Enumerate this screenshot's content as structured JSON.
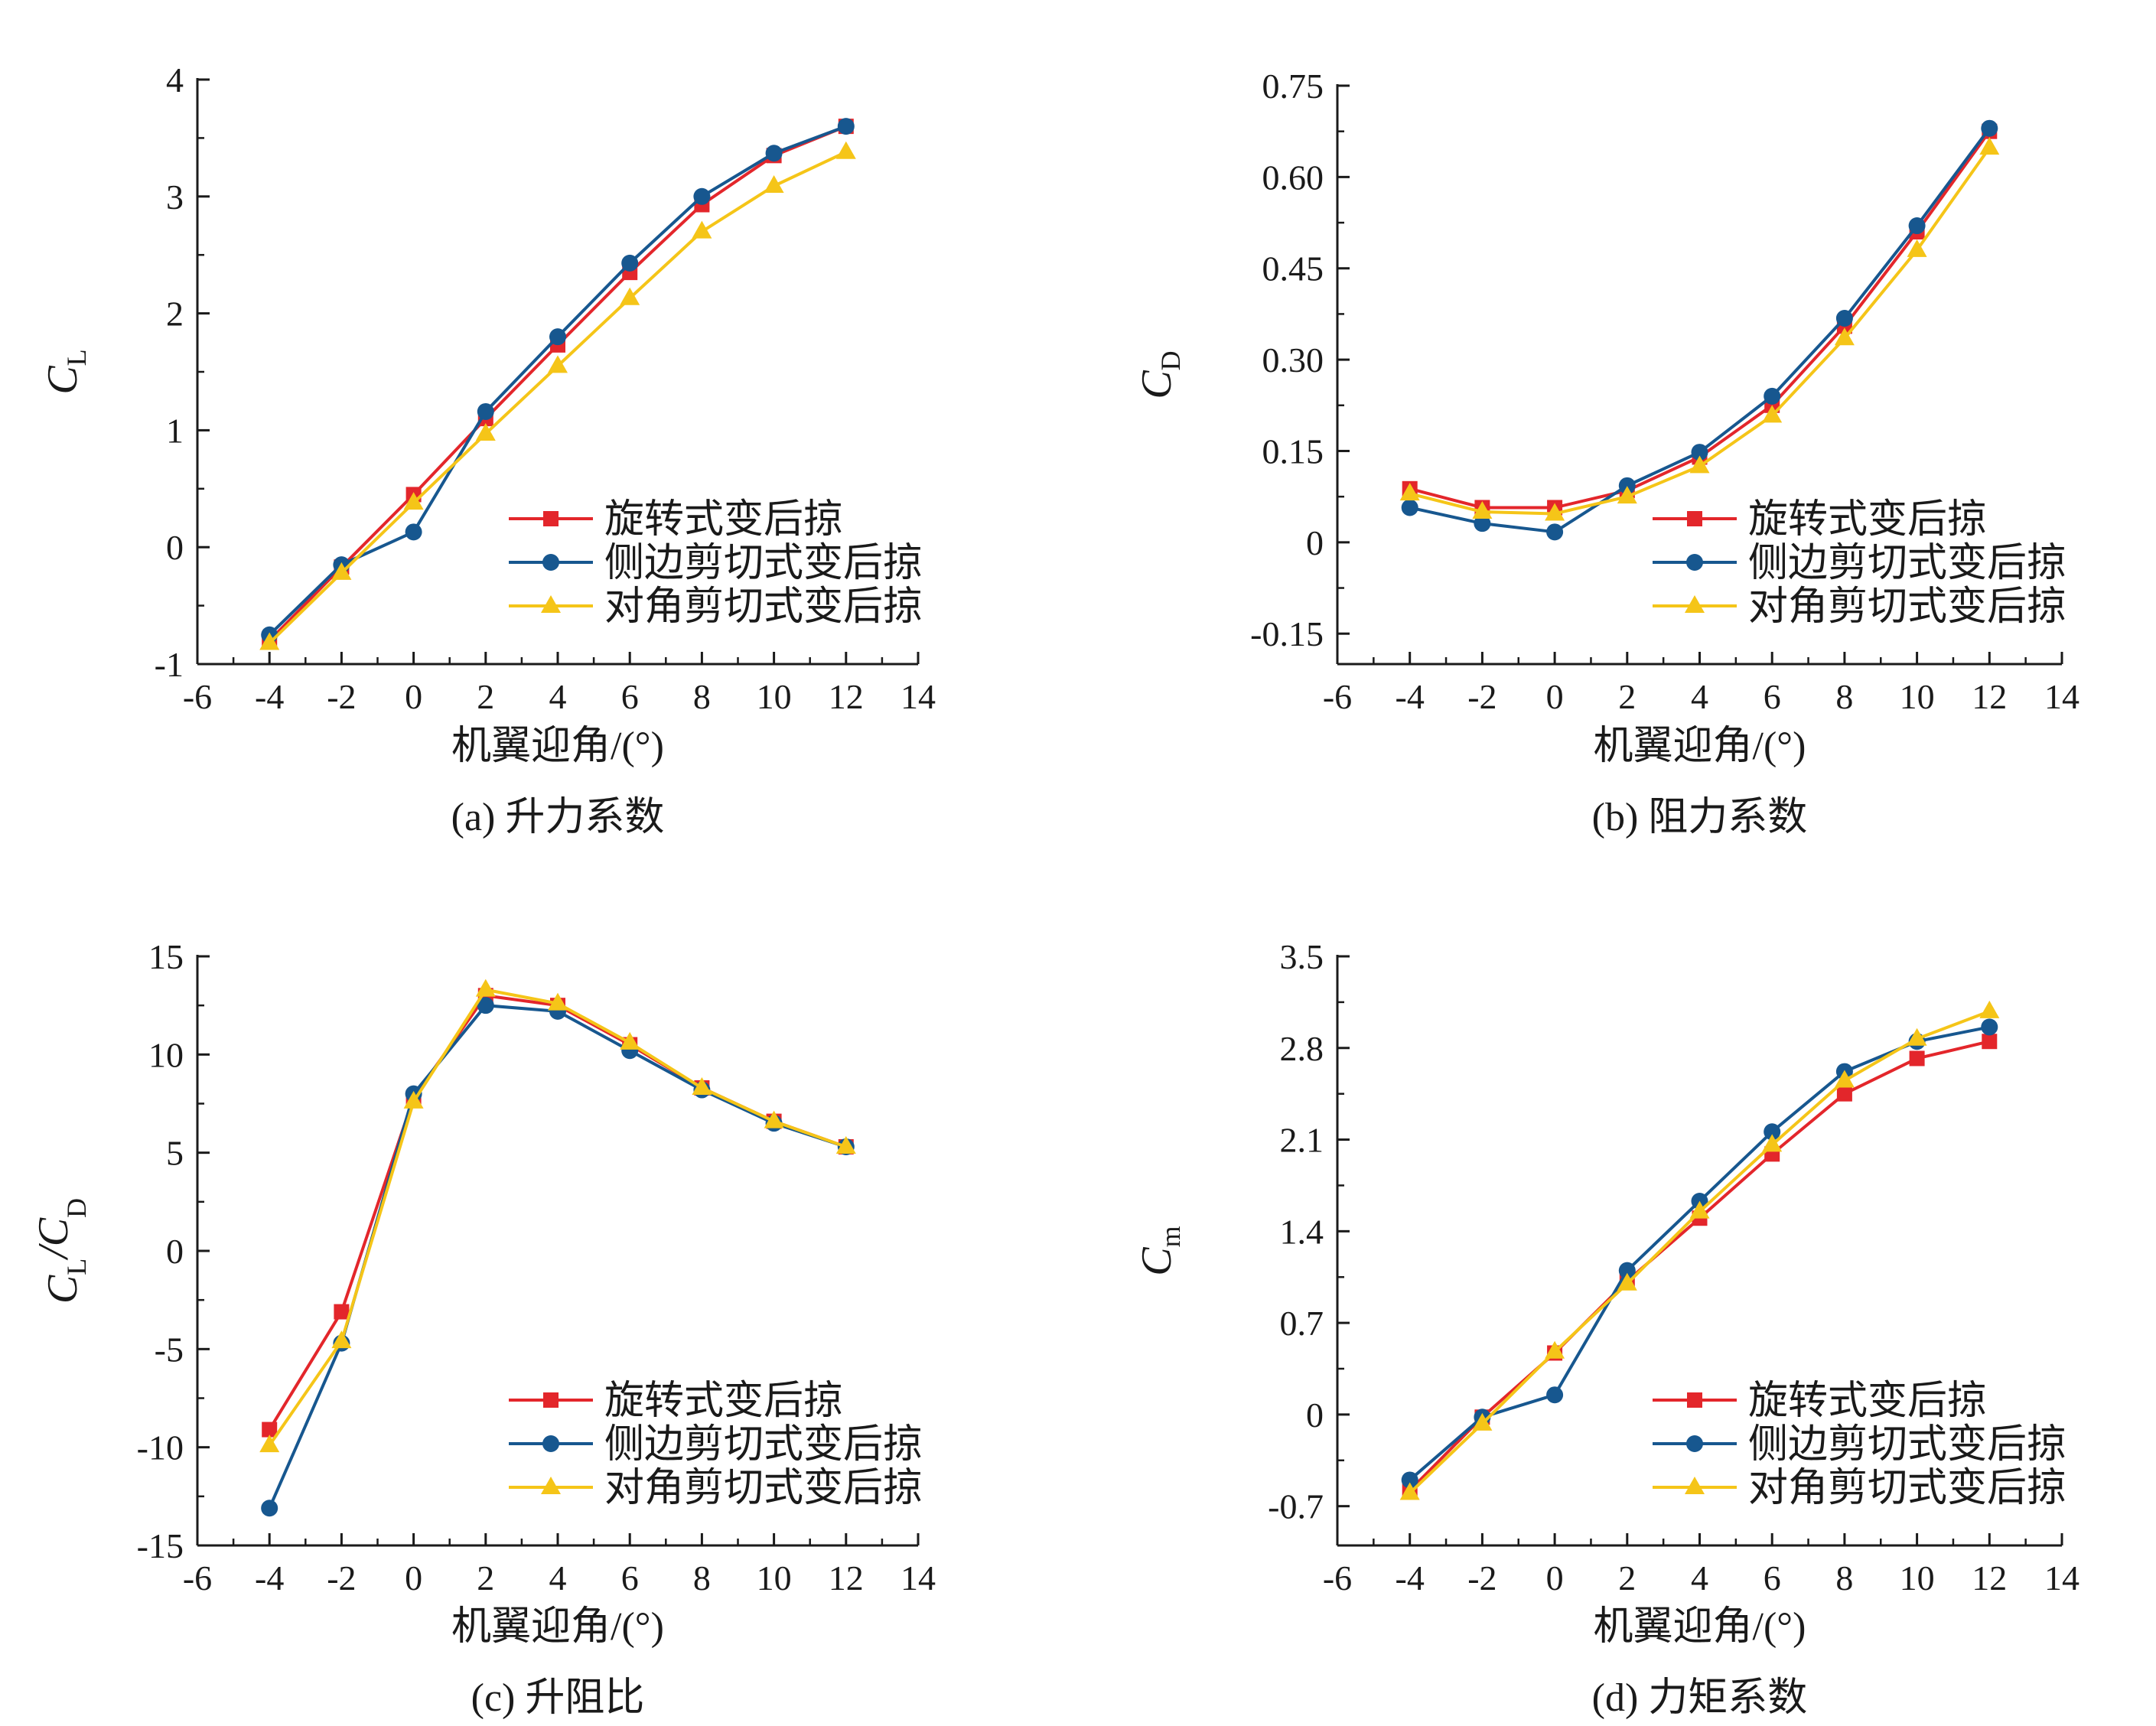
{
  "x_unit_label": "机翼迎角/(°)",
  "legend": [
    "旋转式变后掠",
    "侧边剪切式变后掠",
    "对角剪切式变后掠"
  ],
  "series_styles": [
    {
      "color": "#e3262b",
      "marker": "square"
    },
    {
      "color": "#17578f",
      "marker": "circle"
    },
    {
      "color": "#f5c518",
      "marker": "triangle"
    }
  ],
  "chart_data": [
    {
      "type": "line",
      "caption": "(a) 升力系数",
      "ylabel": {
        "main": "C",
        "sub": "L"
      },
      "xlabel": "机翼迎角/(°)",
      "xlim": [
        -6,
        14
      ],
      "xticks": [
        -6,
        -4,
        -2,
        0,
        2,
        4,
        6,
        8,
        10,
        12,
        14
      ],
      "ylim": [
        -1,
        4
      ],
      "yticks": [
        -1,
        0,
        1,
        2,
        3,
        4
      ],
      "ytick_labels": [
        "-1",
        "0",
        "1",
        "2",
        "3",
        "4"
      ],
      "x": [
        -4,
        -2,
        0,
        2,
        4,
        6,
        8,
        10,
        12
      ],
      "series": [
        {
          "name": "旋转式变后掠",
          "values": [
            -0.8,
            -0.17,
            0.45,
            1.1,
            1.73,
            2.35,
            2.93,
            3.35,
            3.6
          ]
        },
        {
          "name": "侧边剪切式变后掠",
          "values": [
            -0.75,
            -0.15,
            0.13,
            1.16,
            1.8,
            2.43,
            3.0,
            3.37,
            3.6
          ]
        },
        {
          "name": "对角剪切式变后掠",
          "values": [
            -0.82,
            -0.22,
            0.38,
            0.97,
            1.55,
            2.13,
            2.7,
            3.09,
            3.38
          ]
        }
      ]
    },
    {
      "type": "line",
      "caption": "(b) 阻力系数",
      "ylabel": {
        "main": "C",
        "sub": "D"
      },
      "xlabel": "机翼迎角/(°)",
      "xlim": [
        -6,
        14
      ],
      "xticks": [
        -6,
        -4,
        -2,
        0,
        2,
        4,
        6,
        8,
        10,
        12,
        14
      ],
      "ylim": [
        -0.2,
        0.75
      ],
      "yticks": [
        -0.15,
        0,
        0.15,
        0.3,
        0.45,
        0.6,
        0.75
      ],
      "ytick_labels": [
        "-0.15",
        "0",
        "0.15",
        "0.30",
        "0.45",
        "0.60",
        "0.75"
      ],
      "x": [
        -4,
        -2,
        0,
        2,
        4,
        6,
        8,
        10,
        12
      ],
      "series": [
        {
          "name": "旋转式变后掠",
          "values": [
            0.088,
            0.057,
            0.057,
            0.085,
            0.14,
            0.225,
            0.355,
            0.51,
            0.675
          ]
        },
        {
          "name": "侧边剪切式变后掠",
          "values": [
            0.057,
            0.031,
            0.017,
            0.093,
            0.148,
            0.24,
            0.368,
            0.52,
            0.68
          ]
        },
        {
          "name": "对角剪切式变后掠",
          "values": [
            0.08,
            0.05,
            0.047,
            0.075,
            0.125,
            0.208,
            0.335,
            0.48,
            0.648
          ]
        }
      ]
    },
    {
      "type": "line",
      "caption": "(c) 升阻比",
      "ylabel": {
        "main": "C",
        "sub": "L",
        "main2": "/C",
        "sub2": "D"
      },
      "xlabel": "机翼迎角/(°)",
      "xlim": [
        -6,
        14
      ],
      "xticks": [
        -6,
        -4,
        -2,
        0,
        2,
        4,
        6,
        8,
        10,
        12,
        14
      ],
      "ylim": [
        -15,
        15
      ],
      "yticks": [
        -15,
        -10,
        -5,
        0,
        5,
        10,
        15
      ],
      "ytick_labels": [
        "-15",
        "-10",
        "-5",
        "0",
        "5",
        "10",
        "15"
      ],
      "x": [
        -4,
        -2,
        0,
        2,
        4,
        6,
        8,
        10,
        12
      ],
      "series": [
        {
          "name": "旋转式变后掠",
          "values": [
            -9.1,
            -3.1,
            7.8,
            13.0,
            12.5,
            10.5,
            8.3,
            6.6,
            5.3
          ]
        },
        {
          "name": "侧边剪切式变后掠",
          "values": [
            -13.1,
            -4.7,
            8.0,
            12.5,
            12.2,
            10.2,
            8.2,
            6.5,
            5.3
          ]
        },
        {
          "name": "对角剪切式变后掠",
          "values": [
            -9.9,
            -4.6,
            7.6,
            13.3,
            12.6,
            10.6,
            8.3,
            6.6,
            5.3
          ]
        }
      ]
    },
    {
      "type": "line",
      "caption": "(d) 力矩系数",
      "ylabel": {
        "main": "C",
        "sub": "m"
      },
      "xlabel": "机翼迎角/(°)",
      "xlim": [
        -6,
        14
      ],
      "xticks": [
        -6,
        -4,
        -2,
        0,
        2,
        4,
        6,
        8,
        10,
        12,
        14
      ],
      "ylim": [
        -1.0,
        3.5
      ],
      "yticks": [
        -0.7,
        0,
        0.7,
        1.4,
        2.1,
        2.8,
        3.5
      ],
      "ytick_labels": [
        "-0.7",
        "0",
        "0.7",
        "1.4",
        "2.1",
        "2.8",
        "3.5"
      ],
      "x": [
        -4,
        -2,
        0,
        2,
        4,
        6,
        8,
        10,
        12
      ],
      "series": [
        {
          "name": "旋转式变后掠",
          "values": [
            -0.58,
            -0.02,
            0.47,
            1.02,
            1.5,
            1.99,
            2.45,
            2.72,
            2.85
          ]
        },
        {
          "name": "侧边剪切式变后掠",
          "values": [
            -0.5,
            -0.02,
            0.15,
            1.1,
            1.63,
            2.16,
            2.62,
            2.85,
            2.96
          ]
        },
        {
          "name": "对角剪切式变后掠",
          "values": [
            -0.6,
            -0.07,
            0.48,
            1.0,
            1.55,
            2.06,
            2.55,
            2.87,
            3.08
          ]
        }
      ]
    }
  ]
}
